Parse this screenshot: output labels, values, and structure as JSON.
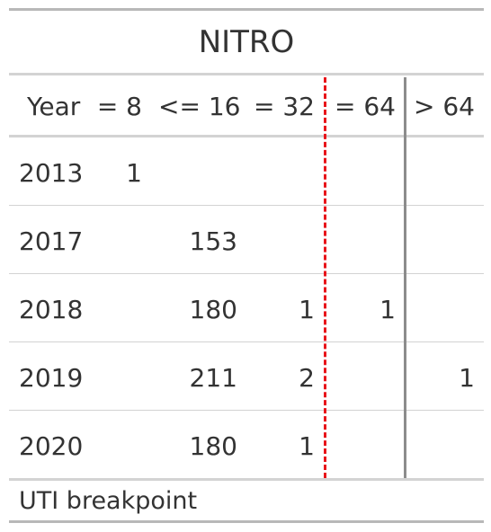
{
  "title": "NITRO",
  "columns": [
    "Year",
    "= 8",
    "<= 16",
    "= 32",
    "= 64",
    "> 64"
  ],
  "rows": [
    {
      "year": "2013",
      "c8": "1",
      "c16": "",
      "c32": "",
      "c64": "",
      "cgt64": ""
    },
    {
      "year": "2017",
      "c8": "",
      "c16": "153",
      "c32": "",
      "c64": "",
      "cgt64": ""
    },
    {
      "year": "2018",
      "c8": "",
      "c16": "180",
      "c32": "1",
      "c64": "1",
      "cgt64": ""
    },
    {
      "year": "2019",
      "c8": "",
      "c16": "211",
      "c32": "2",
      "c64": "",
      "cgt64": "1"
    },
    {
      "year": "2020",
      "c8": "",
      "c16": "180",
      "c32": "1",
      "c64": "",
      "cgt64": ""
    }
  ],
  "footer": "UTI breakpoint",
  "colors": {
    "breakpoint_line": "#e8141a",
    "divider_line": "#8c8c8c",
    "text": "#333333"
  }
}
